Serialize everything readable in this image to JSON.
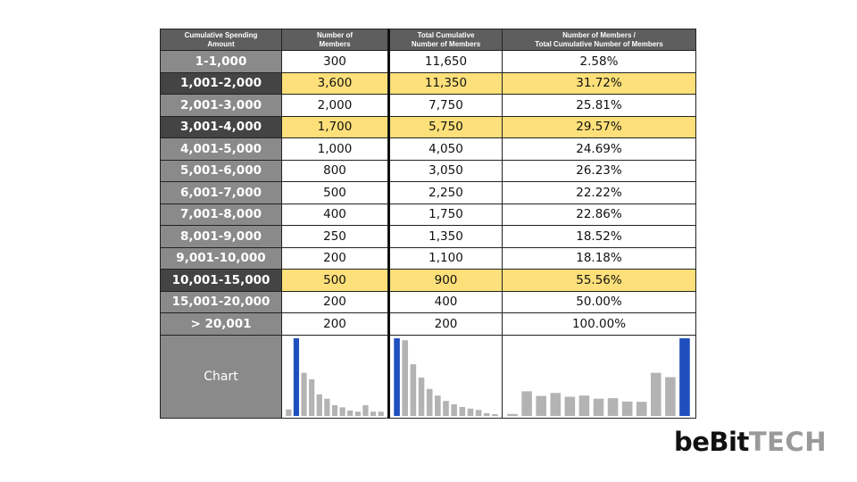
{
  "table": {
    "headers": [
      "Cumulative Spending\nAmount",
      "Number of\nMembers",
      "Total Cumulative\nNumber of Members",
      "Number of Members /\nTotal Cumulative Number of Members"
    ],
    "rows": [
      {
        "range": "1-1,000",
        "members": "300",
        "total": "11,650",
        "ratio": "2.58%",
        "highlight": false
      },
      {
        "range": "1,001-2,000",
        "members": "3,600",
        "total": "11,350",
        "ratio": "31.72%",
        "highlight": true
      },
      {
        "range": "2,001-3,000",
        "members": "2,000",
        "total": "7,750",
        "ratio": "25.81%",
        "highlight": false
      },
      {
        "range": "3,001-4,000",
        "members": "1,700",
        "total": "5,750",
        "ratio": "29.57%",
        "highlight": true
      },
      {
        "range": "4,001-5,000",
        "members": "1,000",
        "total": "4,050",
        "ratio": "24.69%",
        "highlight": false
      },
      {
        "range": "5,001-6,000",
        "members": "800",
        "total": "3,050",
        "ratio": "26.23%",
        "highlight": false
      },
      {
        "range": "6,001-7,000",
        "members": "500",
        "total": "2,250",
        "ratio": "22.22%",
        "highlight": false
      },
      {
        "range": "7,001-8,000",
        "members": "400",
        "total": "1,750",
        "ratio": "22.86%",
        "highlight": false
      },
      {
        "range": "8,001-9,000",
        "members": "250",
        "total": "1,350",
        "ratio": "18.52%",
        "highlight": false
      },
      {
        "range": "9,001-10,000",
        "members": "200",
        "total": "1,100",
        "ratio": "18.18%",
        "highlight": false
      },
      {
        "range": "10,001-15,000",
        "members": "500",
        "total": "900",
        "ratio": "55.56%",
        "highlight": true
      },
      {
        "range": "15,001-20,000",
        "members": "200",
        "total": "400",
        "ratio": "50.00%",
        "highlight": false
      },
      {
        "range": "> 20,001",
        "members": "200",
        "total": "200",
        "ratio": "100.00%",
        "highlight": false
      }
    ],
    "chart_row_label": "Chart"
  },
  "chart_data": [
    {
      "type": "bar",
      "title": "",
      "categories": [
        "1-1,000",
        "1,001-2,000",
        "2,001-3,000",
        "3,001-4,000",
        "4,001-5,000",
        "5,001-6,000",
        "6,001-7,000",
        "7,001-8,000",
        "8,001-9,000",
        "9,001-10,000",
        "10,001-15,000",
        "15,001-20,000",
        "> 20,001"
      ],
      "values": [
        300,
        3600,
        2000,
        1700,
        1000,
        800,
        500,
        400,
        250,
        200,
        500,
        200,
        200
      ],
      "highlight_index": 1
    },
    {
      "type": "bar",
      "title": "",
      "categories": [
        "1-1,000",
        "1,001-2,000",
        "2,001-3,000",
        "3,001-4,000",
        "4,001-5,000",
        "5,001-6,000",
        "6,001-7,000",
        "7,001-8,000",
        "8,001-9,000",
        "9,001-10,000",
        "10,001-15,000",
        "15,001-20,000",
        "> 20,001"
      ],
      "values": [
        11650,
        11350,
        7750,
        5750,
        4050,
        3050,
        2250,
        1750,
        1350,
        1100,
        900,
        400,
        200
      ],
      "highlight_index": 0
    },
    {
      "type": "bar",
      "title": "",
      "categories": [
        "1-1,000",
        "1,001-2,000",
        "2,001-3,000",
        "3,001-4,000",
        "4,001-5,000",
        "5,001-6,000",
        "6,001-7,000",
        "7,001-8,000",
        "8,001-9,000",
        "9,001-10,000",
        "10,001-15,000",
        "15,001-20,000",
        "> 20,001"
      ],
      "values": [
        2.58,
        31.72,
        25.81,
        29.57,
        24.69,
        26.23,
        22.22,
        22.86,
        18.52,
        18.18,
        55.56,
        50.0,
        100.0
      ],
      "highlight_index": 12
    }
  ],
  "colors": {
    "bar": "#b3b3b3",
    "bar_highlight": "#1f4fbf",
    "cell_highlight": "#fde07a"
  },
  "logo": {
    "part1": "beBit",
    "part2": "TECH"
  }
}
